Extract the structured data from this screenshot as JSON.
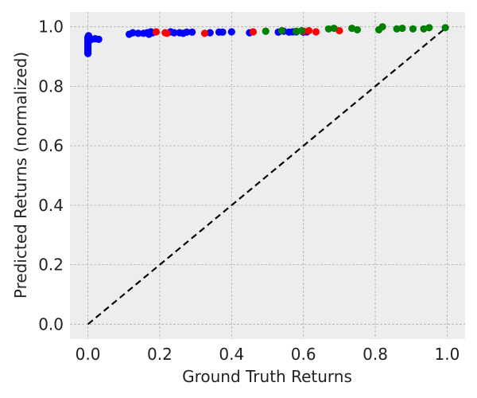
{
  "chart_data": {
    "type": "scatter",
    "title": "",
    "xlabel": "Ground Truth Returns",
    "ylabel": "Predicted Returns (normalized)",
    "xlim": [
      -0.05,
      1.05
    ],
    "ylim": [
      -0.05,
      1.05
    ],
    "xticks": [
      "0.0",
      "0.2",
      "0.4",
      "0.6",
      "0.8",
      "1.0"
    ],
    "yticks": [
      "0.0",
      "0.2",
      "0.4",
      "0.6",
      "0.8",
      "1.0"
    ],
    "grid": true,
    "legend": "none",
    "background_color": "#ededed",
    "reference_line": {
      "style": "dashed",
      "color": "#000000",
      "from": [
        0,
        0
      ],
      "to": [
        1,
        1
      ]
    },
    "series": [
      {
        "color": "#0000ff",
        "points": [
          [
            0.0,
            0.91
          ],
          [
            0.0,
            0.915
          ],
          [
            0.0,
            0.92
          ],
          [
            0.0,
            0.925
          ],
          [
            0.0,
            0.93
          ],
          [
            0.0,
            0.935
          ],
          [
            0.0,
            0.94
          ],
          [
            0.0,
            0.945
          ],
          [
            0.0,
            0.95
          ],
          [
            0.0,
            0.955
          ],
          [
            0.0,
            0.96
          ],
          [
            0.0,
            0.965
          ],
          [
            0.002,
            0.97
          ],
          [
            0.005,
            0.955
          ],
          [
            0.01,
            0.958
          ],
          [
            0.02,
            0.96
          ],
          [
            0.03,
            0.958
          ],
          [
            0.115,
            0.975
          ],
          [
            0.125,
            0.98
          ],
          [
            0.14,
            0.978
          ],
          [
            0.155,
            0.978
          ],
          [
            0.165,
            0.98
          ],
          [
            0.17,
            0.975
          ],
          [
            0.175,
            0.983
          ],
          [
            0.18,
            0.98
          ],
          [
            0.23,
            0.983
          ],
          [
            0.24,
            0.98
          ],
          [
            0.255,
            0.98
          ],
          [
            0.265,
            0.978
          ],
          [
            0.275,
            0.982
          ],
          [
            0.29,
            0.982
          ],
          [
            0.34,
            0.98
          ],
          [
            0.365,
            0.982
          ],
          [
            0.375,
            0.982
          ],
          [
            0.4,
            0.983
          ],
          [
            0.45,
            0.98
          ],
          [
            0.53,
            0.982
          ],
          [
            0.545,
            0.985
          ],
          [
            0.56,
            0.982
          ],
          [
            0.57,
            0.983
          ],
          [
            0.58,
            0.983
          ],
          [
            0.6,
            0.982
          ],
          [
            0.61,
            0.983
          ]
        ]
      },
      {
        "color": "#ff0000",
        "points": [
          [
            0.19,
            0.983
          ],
          [
            0.215,
            0.98
          ],
          [
            0.22,
            0.978
          ],
          [
            0.325,
            0.978
          ],
          [
            0.46,
            0.983
          ],
          [
            0.6,
            0.985
          ],
          [
            0.615,
            0.987
          ],
          [
            0.635,
            0.983
          ],
          [
            0.7,
            0.987
          ]
        ]
      },
      {
        "color": "#008000",
        "points": [
          [
            0.495,
            0.985
          ],
          [
            0.54,
            0.987
          ],
          [
            0.58,
            0.985
          ],
          [
            0.595,
            0.987
          ],
          [
            0.67,
            0.993
          ],
          [
            0.685,
            0.995
          ],
          [
            0.735,
            0.995
          ],
          [
            0.75,
            0.99
          ],
          [
            0.81,
            0.99
          ],
          [
            0.82,
            1.0
          ],
          [
            0.86,
            0.993
          ],
          [
            0.875,
            0.995
          ],
          [
            0.905,
            0.993
          ],
          [
            0.935,
            0.993
          ],
          [
            0.95,
            0.997
          ],
          [
            0.995,
            0.997
          ]
        ]
      }
    ]
  }
}
